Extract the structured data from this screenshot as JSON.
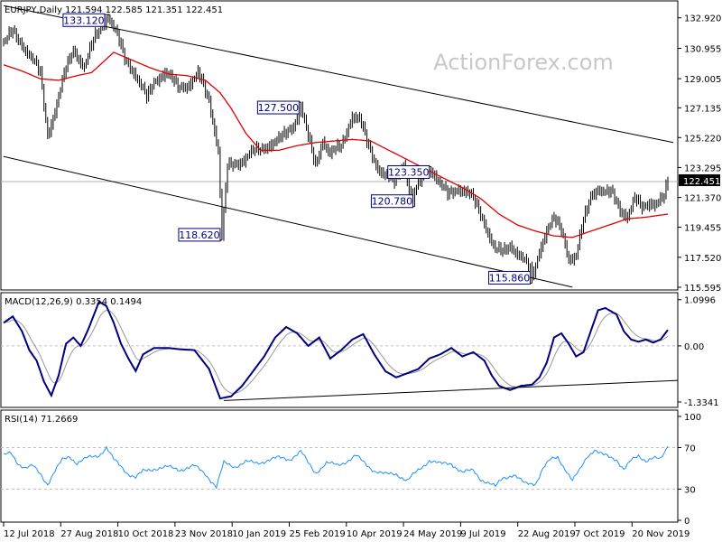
{
  "chart_data": [
    {
      "type": "candlestick",
      "header": "EURJPY,Daily  121.594 122.585 121.351 122.451",
      "watermark": "ActionForex.com",
      "ylim": [
        115.595,
        133.6
      ],
      "y_ticks": [
        "132.920",
        "130.955",
        "129.005",
        "127.135",
        "125.220",
        "123.295",
        "121.370",
        "119.455",
        "117.520",
        "115.595"
      ],
      "last_price": "122.451",
      "x_ticks": [
        "12 Jul 2018",
        "27 Aug 2018",
        "10 Oct 2018",
        "23 Nov 2018",
        "10 Jan 2019",
        "25 Feb 2019",
        "10 Apr 2019",
        "24 May 2019",
        "9 Jul 2019",
        "22 Aug 2019",
        "7 Oct 2019",
        "20 Nov 2019"
      ],
      "annotations": [
        {
          "text": "133.120",
          "index": 58,
          "price": 133.12
        },
        {
          "text": "127.500",
          "index": 162,
          "price": 127.5
        },
        {
          "text": "118.620",
          "index": 119,
          "price": 118.62
        },
        {
          "text": "123.350",
          "index": 233,
          "price": 123.35
        },
        {
          "text": "120.780",
          "index": 224,
          "price": 120.78
        },
        {
          "text": "115.860",
          "index": 288,
          "price": 115.86
        }
      ],
      "trendlines": [
        {
          "from": [
            0,
            133.7
          ],
          "to": [
            365,
            124.9
          ]
        },
        {
          "from": [
            0,
            124.0
          ],
          "to": [
            310,
            115.6
          ]
        }
      ],
      "anchors": [
        [
          0,
          131.3
        ],
        [
          5,
          132.0
        ],
        [
          14,
          130.6
        ],
        [
          20,
          129.3
        ],
        [
          24,
          125.4
        ],
        [
          28,
          127.0
        ],
        [
          34,
          129.6
        ],
        [
          38,
          130.9
        ],
        [
          44,
          129.8
        ],
        [
          50,
          131.7
        ],
        [
          57,
          133.1
        ],
        [
          62,
          131.7
        ],
        [
          66,
          130.3
        ],
        [
          72,
          129.3
        ],
        [
          78,
          127.7
        ],
        [
          82,
          128.8
        ],
        [
          88,
          129.5
        ],
        [
          95,
          128.4
        ],
        [
          100,
          128.6
        ],
        [
          106,
          129.3
        ],
        [
          112,
          127.6
        ],
        [
          117,
          124.5
        ],
        [
          119,
          118.9
        ],
        [
          122,
          123.3
        ],
        [
          128,
          123.6
        ],
        [
          134,
          124.2
        ],
        [
          140,
          124.4
        ],
        [
          146,
          124.9
        ],
        [
          152,
          125.2
        ],
        [
          158,
          126.0
        ],
        [
          162,
          127.3
        ],
        [
          166,
          125.2
        ],
        [
          170,
          123.4
        ],
        [
          174,
          125.1
        ],
        [
          178,
          124.2
        ],
        [
          184,
          124.6
        ],
        [
          190,
          126.7
        ],
        [
          194,
          126.4
        ],
        [
          198,
          124.9
        ],
        [
          203,
          123.5
        ],
        [
          208,
          122.8
        ],
        [
          213,
          122.3
        ],
        [
          218,
          123.6
        ],
        [
          222,
          121.4
        ],
        [
          226,
          122.1
        ],
        [
          230,
          123.0
        ],
        [
          234,
          123.1
        ],
        [
          238,
          122.2
        ],
        [
          242,
          121.5
        ],
        [
          248,
          122.0
        ],
        [
          252,
          121.8
        ],
        [
          256,
          121.2
        ],
        [
          260,
          120.3
        ],
        [
          264,
          119.2
        ],
        [
          268,
          118.0
        ],
        [
          272,
          117.8
        ],
        [
          276,
          118.3
        ],
        [
          282,
          117.6
        ],
        [
          286,
          116.8
        ],
        [
          289,
          116.5
        ],
        [
          292,
          118.0
        ],
        [
          296,
          119.3
        ],
        [
          300,
          119.9
        ],
        [
          304,
          119.3
        ],
        [
          308,
          117.5
        ],
        [
          312,
          117.6
        ],
        [
          316,
          119.8
        ],
        [
          320,
          121.5
        ],
        [
          324,
          122.0
        ],
        [
          328,
          121.6
        ],
        [
          332,
          121.6
        ],
        [
          336,
          120.6
        ],
        [
          340,
          120.2
        ],
        [
          344,
          121.2
        ],
        [
          348,
          120.7
        ],
        [
          352,
          121.1
        ],
        [
          356,
          121.0
        ],
        [
          360,
          121.3
        ],
        [
          362,
          122.45
        ]
      ],
      "ma_anchors": [
        [
          0,
          129.9
        ],
        [
          10,
          129.5
        ],
        [
          20,
          129.0
        ],
        [
          30,
          128.9
        ],
        [
          40,
          129.2
        ],
        [
          48,
          129.4
        ],
        [
          60,
          130.7
        ],
        [
          70,
          130.2
        ],
        [
          80,
          129.7
        ],
        [
          90,
          129.3
        ],
        [
          100,
          129.2
        ],
        [
          110,
          128.9
        ],
        [
          118,
          128.1
        ],
        [
          124,
          127.1
        ],
        [
          132,
          125.5
        ],
        [
          140,
          124.4
        ],
        [
          150,
          124.4
        ],
        [
          160,
          124.7
        ],
        [
          170,
          124.9
        ],
        [
          180,
          125.0
        ],
        [
          190,
          125.1
        ],
        [
          200,
          125.0
        ],
        [
          210,
          124.4
        ],
        [
          220,
          123.8
        ],
        [
          230,
          123.2
        ],
        [
          240,
          122.6
        ],
        [
          250,
          122.0
        ],
        [
          260,
          121.3
        ],
        [
          270,
          120.3
        ],
        [
          280,
          119.6
        ],
        [
          290,
          119.2
        ],
        [
          300,
          118.9
        ],
        [
          310,
          118.8
        ],
        [
          320,
          119.2
        ],
        [
          330,
          119.6
        ],
        [
          340,
          120.0
        ],
        [
          350,
          120.1
        ],
        [
          362,
          120.3
        ]
      ]
    },
    {
      "type": "line",
      "title": "MACD(12,26,9) 0.3354 0.1494",
      "series": [
        {
          "name": "MACD",
          "color": "#000080"
        },
        {
          "name": "Signal",
          "color": "#999999"
        }
      ],
      "y_ticks": [
        "1.0996",
        "0.00",
        "-1.3341"
      ],
      "ylim": [
        -1.42,
        1.18
      ],
      "support_line": {
        "from": [
          120,
          -1.3
        ],
        "to": [
          362,
          -0.82
        ]
      },
      "anchors": [
        [
          0,
          0.55
        ],
        [
          5,
          0.7
        ],
        [
          10,
          0.35
        ],
        [
          14,
          -0.1
        ],
        [
          18,
          -0.35
        ],
        [
          22,
          -0.85
        ],
        [
          26,
          -1.18
        ],
        [
          30,
          -0.7
        ],
        [
          34,
          0.05
        ],
        [
          38,
          0.2
        ],
        [
          42,
          0.0
        ],
        [
          46,
          0.38
        ],
        [
          52,
          1.05
        ],
        [
          56,
          0.95
        ],
        [
          60,
          0.55
        ],
        [
          64,
          0.05
        ],
        [
          68,
          -0.3
        ],
        [
          72,
          -0.6
        ],
        [
          76,
          -0.2
        ],
        [
          82,
          -0.05
        ],
        [
          90,
          -0.05
        ],
        [
          96,
          -0.08
        ],
        [
          104,
          -0.1
        ],
        [
          112,
          -0.55
        ],
        [
          118,
          -1.25
        ],
        [
          124,
          -1.2
        ],
        [
          130,
          -0.95
        ],
        [
          136,
          -0.6
        ],
        [
          142,
          -0.25
        ],
        [
          148,
          0.2
        ],
        [
          154,
          0.45
        ],
        [
          160,
          0.3
        ],
        [
          166,
          0.0
        ],
        [
          172,
          0.2
        ],
        [
          178,
          -0.3
        ],
        [
          184,
          -0.1
        ],
        [
          190,
          0.15
        ],
        [
          196,
          0.28
        ],
        [
          202,
          -0.2
        ],
        [
          208,
          -0.6
        ],
        [
          214,
          -0.75
        ],
        [
          220,
          -0.65
        ],
        [
          226,
          -0.55
        ],
        [
          232,
          -0.3
        ],
        [
          238,
          -0.2
        ],
        [
          244,
          -0.05
        ],
        [
          250,
          -0.25
        ],
        [
          256,
          -0.15
        ],
        [
          262,
          -0.35
        ],
        [
          266,
          -0.7
        ],
        [
          270,
          -0.95
        ],
        [
          276,
          -1.05
        ],
        [
          282,
          -0.95
        ],
        [
          288,
          -0.92
        ],
        [
          292,
          -0.75
        ],
        [
          296,
          -0.4
        ],
        [
          300,
          0.2
        ],
        [
          304,
          0.3
        ],
        [
          308,
          0.05
        ],
        [
          312,
          -0.25
        ],
        [
          316,
          -0.15
        ],
        [
          320,
          0.35
        ],
        [
          324,
          0.85
        ],
        [
          328,
          0.9
        ],
        [
          334,
          0.75
        ],
        [
          338,
          0.35
        ],
        [
          342,
          0.15
        ],
        [
          346,
          0.1
        ],
        [
          350,
          0.15
        ],
        [
          354,
          0.08
        ],
        [
          358,
          0.15
        ],
        [
          362,
          0.38
        ]
      ]
    },
    {
      "type": "line",
      "title": "RSI(14) 71.2669",
      "series": [
        {
          "name": "RSI",
          "color": "#1e90ff"
        }
      ],
      "y_ticks": [
        "100",
        "70",
        "30",
        "0"
      ],
      "ylim": [
        0,
        100
      ],
      "levels": [
        70,
        30
      ],
      "anchors": [
        [
          0,
          62
        ],
        [
          4,
          65
        ],
        [
          8,
          55
        ],
        [
          12,
          50
        ],
        [
          16,
          52
        ],
        [
          20,
          45
        ],
        [
          24,
          35
        ],
        [
          28,
          47
        ],
        [
          32,
          58
        ],
        [
          36,
          62
        ],
        [
          40,
          55
        ],
        [
          46,
          60
        ],
        [
          52,
          63
        ],
        [
          56,
          70
        ],
        [
          60,
          58
        ],
        [
          64,
          52
        ],
        [
          68,
          45
        ],
        [
          72,
          41
        ],
        [
          76,
          47
        ],
        [
          82,
          50
        ],
        [
          90,
          51
        ],
        [
          96,
          49
        ],
        [
          104,
          52
        ],
        [
          110,
          45
        ],
        [
          116,
          32
        ],
        [
          120,
          55
        ],
        [
          126,
          52
        ],
        [
          132,
          56
        ],
        [
          138,
          55
        ],
        [
          144,
          58
        ],
        [
          150,
          60
        ],
        [
          156,
          59
        ],
        [
          162,
          66
        ],
        [
          166,
          55
        ],
        [
          170,
          46
        ],
        [
          176,
          55
        ],
        [
          182,
          53
        ],
        [
          188,
          58
        ],
        [
          192,
          62
        ],
        [
          196,
          56
        ],
        [
          202,
          48
        ],
        [
          208,
          44
        ],
        [
          214,
          45
        ],
        [
          220,
          38
        ],
        [
          226,
          48
        ],
        [
          232,
          58
        ],
        [
          238,
          54
        ],
        [
          244,
          55
        ],
        [
          250,
          46
        ],
        [
          256,
          48
        ],
        [
          260,
          40
        ],
        [
          264,
          36
        ],
        [
          268,
          32
        ],
        [
          272,
          41
        ],
        [
          278,
          44
        ],
        [
          284,
          35
        ],
        [
          290,
          36
        ],
        [
          294,
          50
        ],
        [
          298,
          58
        ],
        [
          302,
          61
        ],
        [
          306,
          50
        ],
        [
          310,
          38
        ],
        [
          314,
          48
        ],
        [
          318,
          62
        ],
        [
          322,
          68
        ],
        [
          326,
          63
        ],
        [
          330,
          61
        ],
        [
          334,
          59
        ],
        [
          338,
          49
        ],
        [
          342,
          57
        ],
        [
          346,
          62
        ],
        [
          350,
          58
        ],
        [
          354,
          60
        ],
        [
          358,
          58
        ],
        [
          362,
          71
        ]
      ]
    }
  ]
}
